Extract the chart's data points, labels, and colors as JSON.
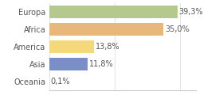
{
  "categories": [
    "Europa",
    "Africa",
    "America",
    "Asia",
    "Oceania"
  ],
  "values": [
    39.3,
    35.0,
    13.8,
    11.8,
    0.1
  ],
  "labels": [
    "39,3%",
    "35,0%",
    "13,8%",
    "11,8%",
    "0,1%"
  ],
  "bar_colors": [
    "#b5c98e",
    "#e8b87a",
    "#f5d87a",
    "#7b8fc7",
    "#cccccc"
  ],
  "background_color": "#ffffff",
  "xlim": [
    0,
    45
  ],
  "bar_height": 0.72,
  "label_fontsize": 7.0,
  "tick_fontsize": 7.0,
  "figsize": [
    2.8,
    1.2
  ],
  "dpi": 100
}
